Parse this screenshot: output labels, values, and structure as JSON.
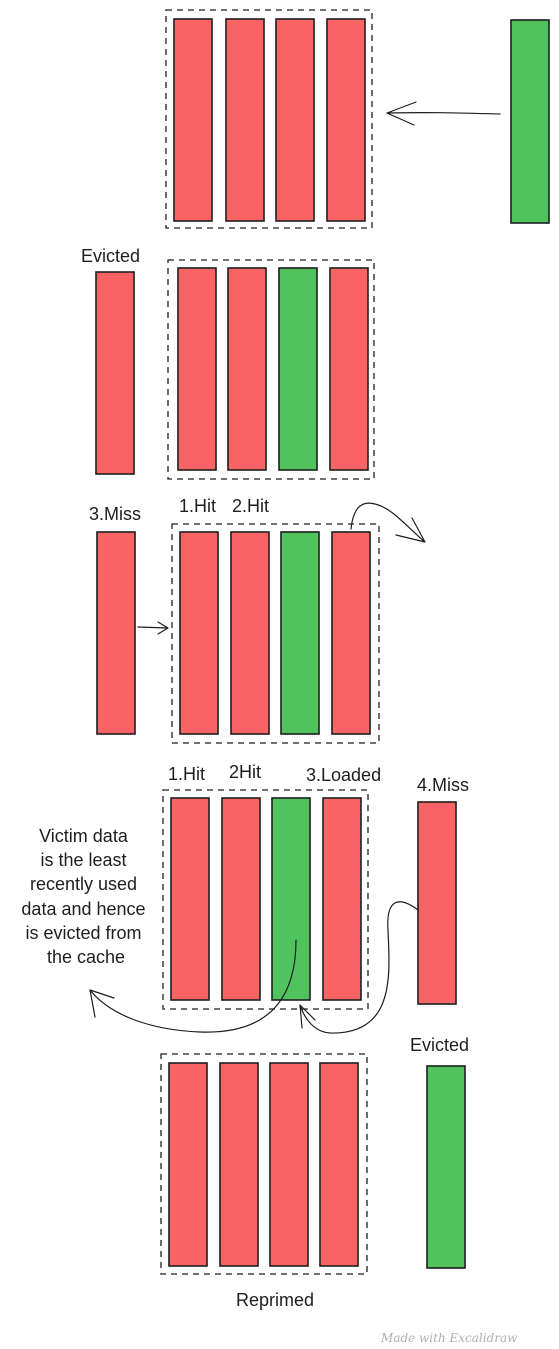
{
  "colors": {
    "red": "#fa6464",
    "green": "#50c35f",
    "stroke": "#1e1e1e"
  },
  "labels": {
    "evicted_top": "Evicted",
    "miss3": "3.Miss",
    "hit1_a": "1.Hit",
    "hit2_a": "2.Hit",
    "hit1_b": "1.Hit",
    "hit2_b": "2Hit",
    "loaded3": "3.Loaded",
    "miss4": "4.Miss",
    "victim_note": [
      "Victim data",
      "is the least",
      "recently used",
      "data and hence",
      "is evicted from",
      "the cache"
    ],
    "evicted_bottom": "Evicted",
    "reprimed": "Reprimed",
    "watermark": "Made with Excalidraw"
  },
  "rows": [
    {
      "id": "row-1",
      "cache": [
        "red",
        "red",
        "red",
        "red"
      ],
      "outside": "green",
      "outside_label": ""
    },
    {
      "id": "row-2",
      "cache": [
        "red",
        "red",
        "green",
        "red"
      ],
      "outside": "red",
      "outside_label": "Evicted"
    },
    {
      "id": "row-3",
      "cache": [
        "red",
        "red",
        "green",
        "red"
      ],
      "outside": "red",
      "outside_label": "3.Miss"
    },
    {
      "id": "row-4",
      "cache": [
        "red",
        "red",
        "green",
        "red"
      ],
      "outside": "red",
      "outside_label": "4.Miss"
    },
    {
      "id": "row-5",
      "cache": [
        "red",
        "red",
        "red",
        "red"
      ],
      "outside": "green",
      "outside_label": "Evicted"
    }
  ]
}
